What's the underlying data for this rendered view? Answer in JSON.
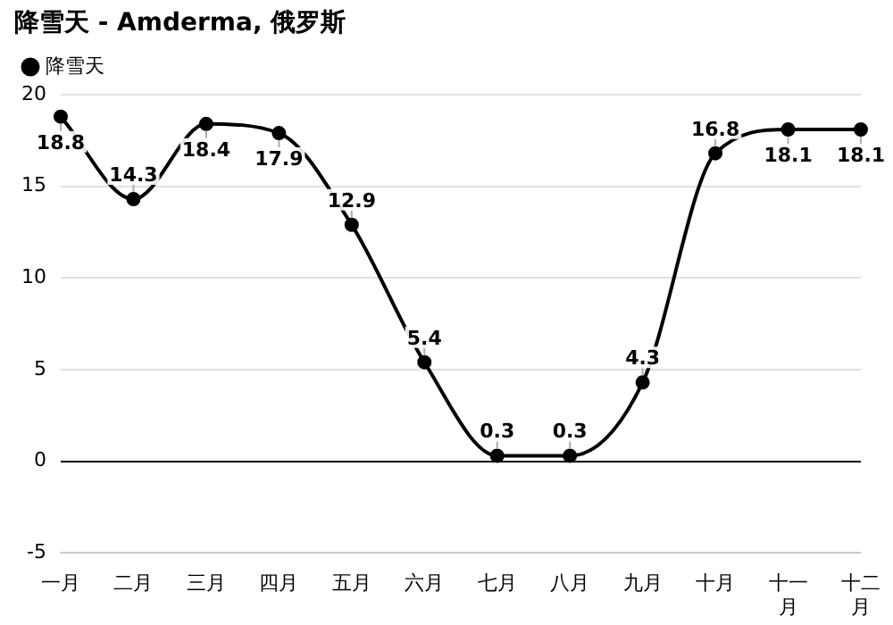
{
  "chart_data": {
    "type": "line",
    "title": "降雪天 - Amderma, 俄罗斯",
    "categories": [
      "一月",
      "二月",
      "三月",
      "四月",
      "五月",
      "六月",
      "七月",
      "八月",
      "九月",
      "十月",
      "十一月",
      "十二月"
    ],
    "series": [
      {
        "name": "降雪天",
        "color": "#000000",
        "values": [
          18.8,
          14.3,
          18.4,
          17.9,
          12.9,
          5.4,
          0.3,
          0.3,
          4.3,
          16.8,
          18.1,
          18.1
        ]
      }
    ],
    "ylim": [
      -5,
      20
    ],
    "yticks": [
      -5,
      0,
      5,
      10,
      15,
      20
    ],
    "grid": "y",
    "legend": "top left",
    "marker": "circle",
    "line_style": "solid",
    "data_labels": true
  }
}
